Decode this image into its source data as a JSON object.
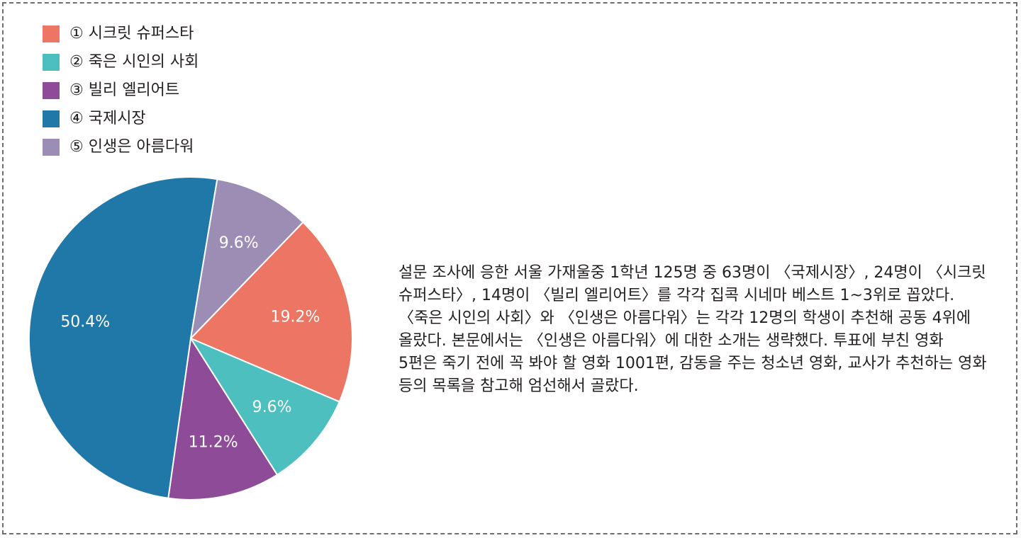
{
  "chart_data": {
    "type": "pie",
    "title": "",
    "legend_position": "top-left",
    "start_angle_deg": 44,
    "slices": [
      {
        "label": "① 시크릿 슈퍼스타",
        "value": 19.2,
        "display": "19.2%",
        "color": "#ec7563"
      },
      {
        "label": "② 죽은 시인의 사회",
        "value": 9.6,
        "display": "9.6%",
        "color": "#4dbfbf"
      },
      {
        "label": "③ 빌리 엘리어트",
        "value": 11.2,
        "display": "11.2%",
        "color": "#8e4b97"
      },
      {
        "label": "④ 국제시장",
        "value": 50.4,
        "display": "50.4%",
        "color": "#1f78a8"
      },
      {
        "label": "⑤ 인생은 아름다워",
        "value": 9.6,
        "display": "9.6%",
        "color": "#9b8db4"
      }
    ]
  },
  "description": "설문 조사에 응한 서울 가재울중 1학년 125명 중 63명이 〈국제시장〉, 24명이 〈시크릿 슈퍼스타〉, 14명이 〈빌리 엘리어트〉를 각각 집콕 시네마 베스트 1~3위로 꼽았다. 〈죽은 시인의 사회〉와 〈인생은 아름다워〉는 각각 12명의 학생이 추천해 공동 4위에 올랐다. 본문에서는 〈인생은 아름다워〉에 대한 소개는 생략했다. 투표에 부친 영화 5편은 죽기 전에 꼭 봐야 할 영화 1001편, 감동을 주는 청소년 영화, 교사가 추천하는 영화 등의 목록을 참고해 엄선해서 골랐다."
}
